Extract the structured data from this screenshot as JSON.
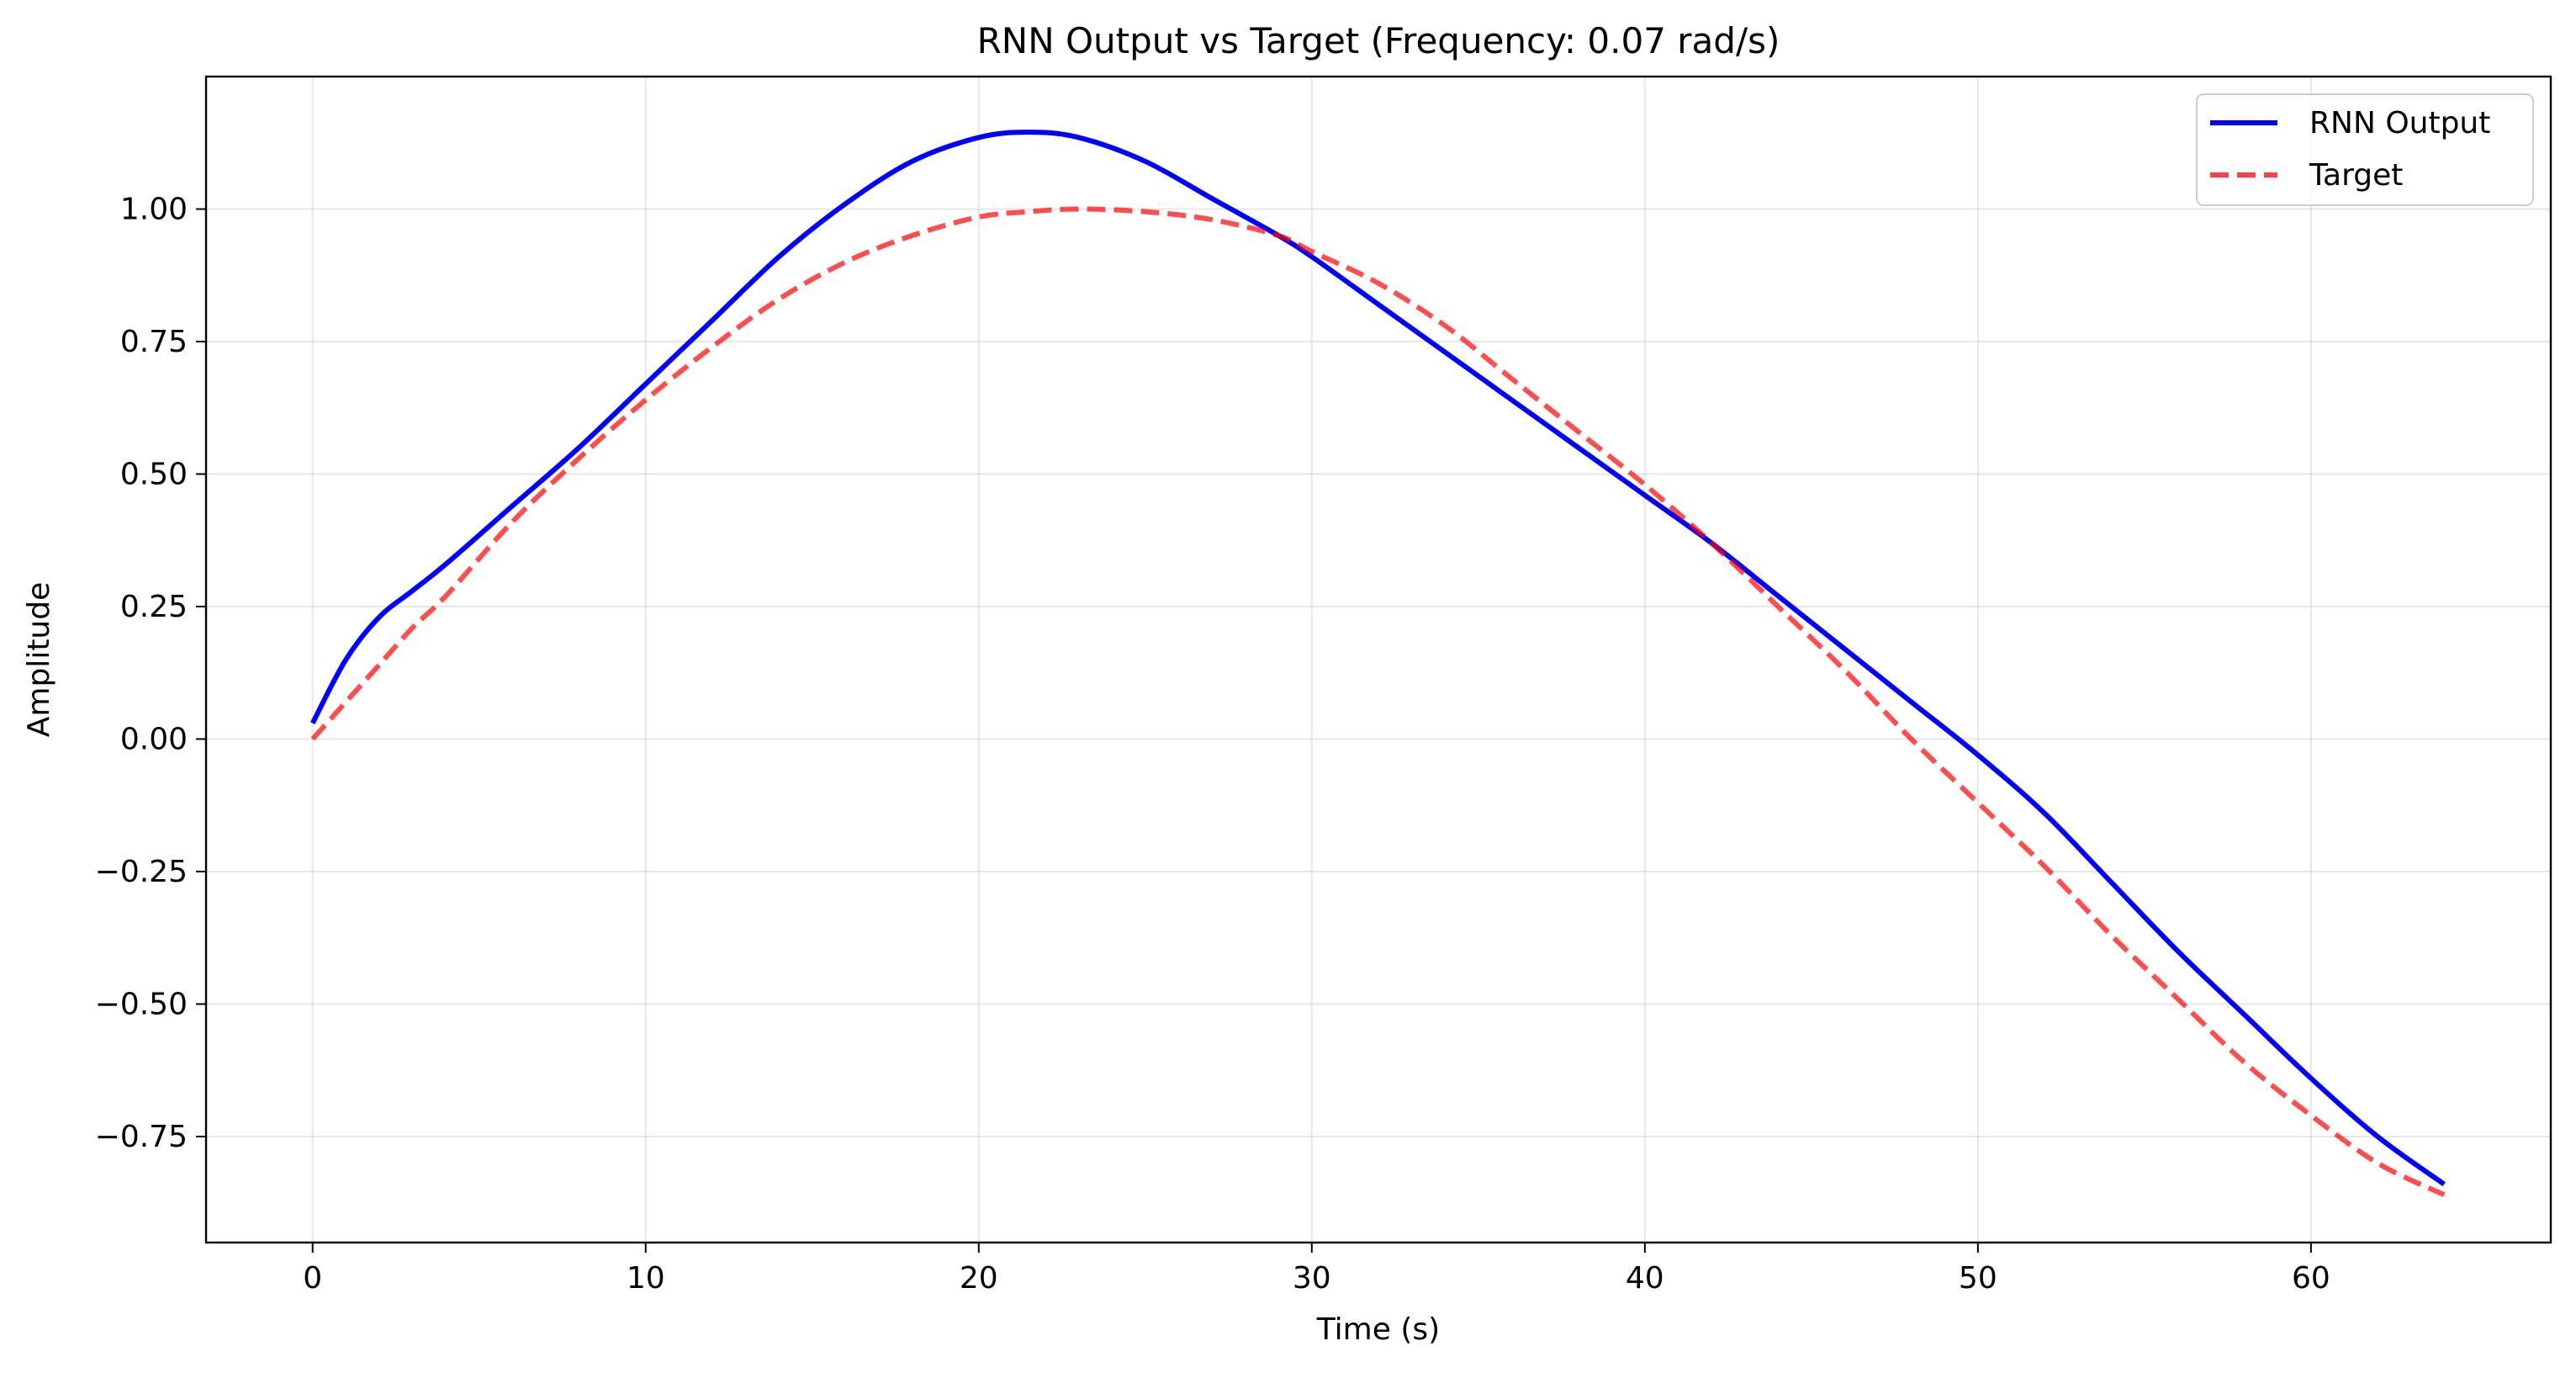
{
  "chart_data": {
    "type": "line",
    "title": "RNN Output vs Target (Frequency: 0.07 rad/s)",
    "xlabel": "Time (s)",
    "ylabel": "Amplitude",
    "xlim": [
      -3.2,
      67.2
    ],
    "ylim": [
      -0.95,
      1.25
    ],
    "xticks": [
      0,
      10,
      20,
      30,
      40,
      50,
      60
    ],
    "xtick_labels": [
      "0",
      "10",
      "20",
      "30",
      "40",
      "50",
      "60"
    ],
    "yticks": [
      -0.75,
      -0.5,
      -0.25,
      0.0,
      0.25,
      0.5,
      0.75,
      1.0
    ],
    "ytick_labels": [
      "−0.75",
      "−0.50",
      "−0.25",
      "0.00",
      "0.25",
      "0.50",
      "0.75",
      "1.00"
    ],
    "grid": true,
    "legend_position": "top-right",
    "x": [
      0,
      1,
      2,
      3,
      4,
      6,
      8,
      10,
      12,
      14,
      16,
      18,
      20,
      21.5,
      23,
      25,
      27,
      29,
      30,
      32,
      34,
      36,
      38,
      40,
      42,
      44,
      46,
      48,
      50,
      52,
      54,
      56,
      58,
      60,
      62,
      64
    ],
    "series": [
      {
        "name": "RNN Output",
        "color": "#0000ff",
        "style": "solid",
        "values": [
          0.03,
          0.15,
          0.23,
          0.28,
          0.33,
          0.44,
          0.55,
          0.67,
          0.79,
          0.91,
          1.01,
          1.09,
          1.135,
          1.145,
          1.135,
          1.09,
          1.02,
          0.95,
          0.91,
          0.82,
          0.73,
          0.64,
          0.55,
          0.46,
          0.37,
          0.27,
          0.17,
          0.07,
          -0.03,
          -0.14,
          -0.27,
          -0.4,
          -0.52,
          -0.64,
          -0.75,
          -0.84
        ]
      },
      {
        "name": "Target",
        "color": "#ff4040",
        "style": "dashed",
        "values": [
          0.0,
          0.07,
          0.14,
          0.21,
          0.27,
          0.41,
          0.53,
          0.64,
          0.74,
          0.83,
          0.9,
          0.95,
          0.985,
          0.995,
          1.0,
          0.995,
          0.98,
          0.95,
          0.92,
          0.86,
          0.78,
          0.68,
          0.58,
          0.48,
          0.37,
          0.25,
          0.13,
          0.0,
          -0.12,
          -0.24,
          -0.37,
          -0.49,
          -0.61,
          -0.71,
          -0.8,
          -0.86
        ]
      }
    ]
  }
}
